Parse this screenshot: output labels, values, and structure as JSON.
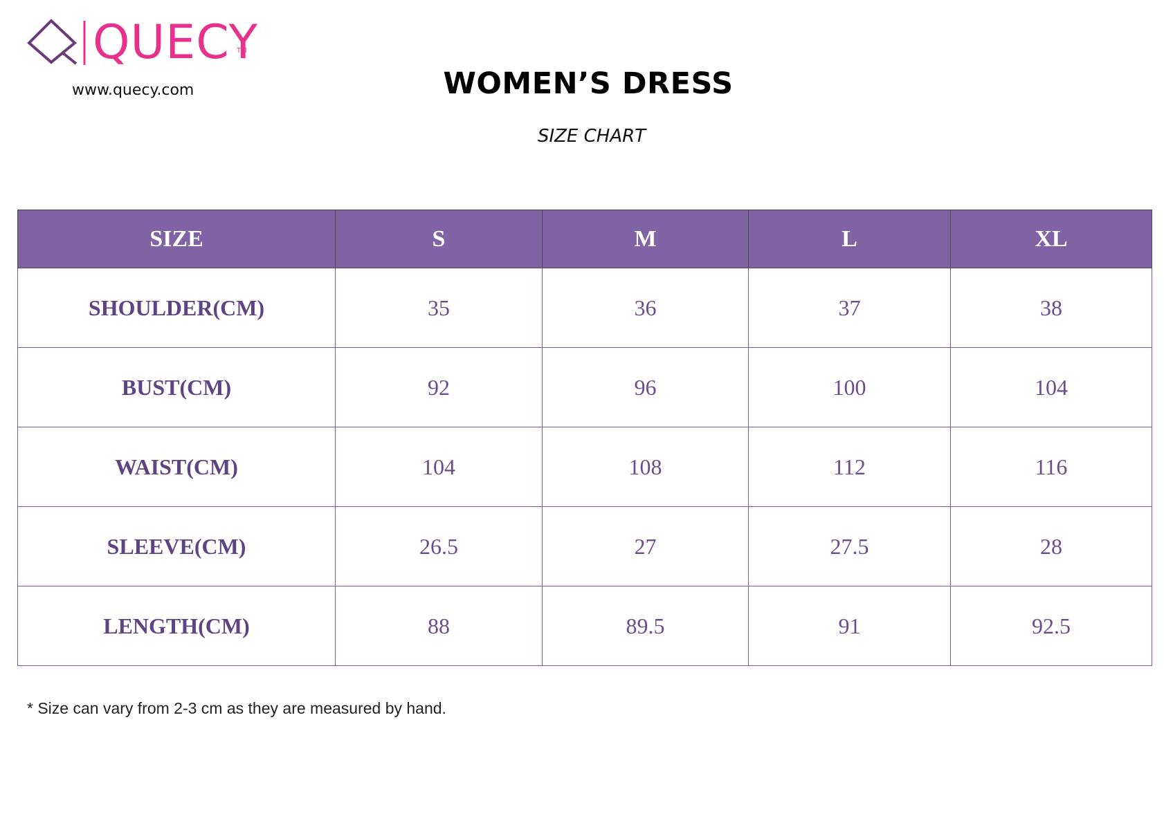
{
  "brand": {
    "logo_text": "QUECY",
    "trademark": "TM",
    "website": "www.quecy.com",
    "color": "#e6328c",
    "mark_color": "#6b3a78"
  },
  "document": {
    "title": "WOMEN’S DRESS",
    "subtitle": "SIZE CHART"
  },
  "table": {
    "header_color": "#8063a5",
    "text_color": "#6b4d8e",
    "columns": [
      "SIZE",
      "S",
      "M",
      "L",
      "XL"
    ],
    "rows": [
      {
        "label": "SHOULDER(CM)",
        "values": [
          "35",
          "36",
          "37",
          "38"
        ]
      },
      {
        "label": "BUST(CM)",
        "values": [
          "92",
          "96",
          "100",
          "104"
        ]
      },
      {
        "label": "WAIST(CM)",
        "values": [
          "104",
          "108",
          "112",
          "116"
        ]
      },
      {
        "label": "SLEEVE(CM)",
        "values": [
          "26.5",
          "27",
          "27.5",
          "28"
        ]
      },
      {
        "label": "LENGTH(CM)",
        "values": [
          "88",
          "89.5",
          "91",
          "92.5"
        ]
      }
    ]
  },
  "footer": {
    "note": "* Size can vary from 2-3 cm as they are measured by hand."
  }
}
